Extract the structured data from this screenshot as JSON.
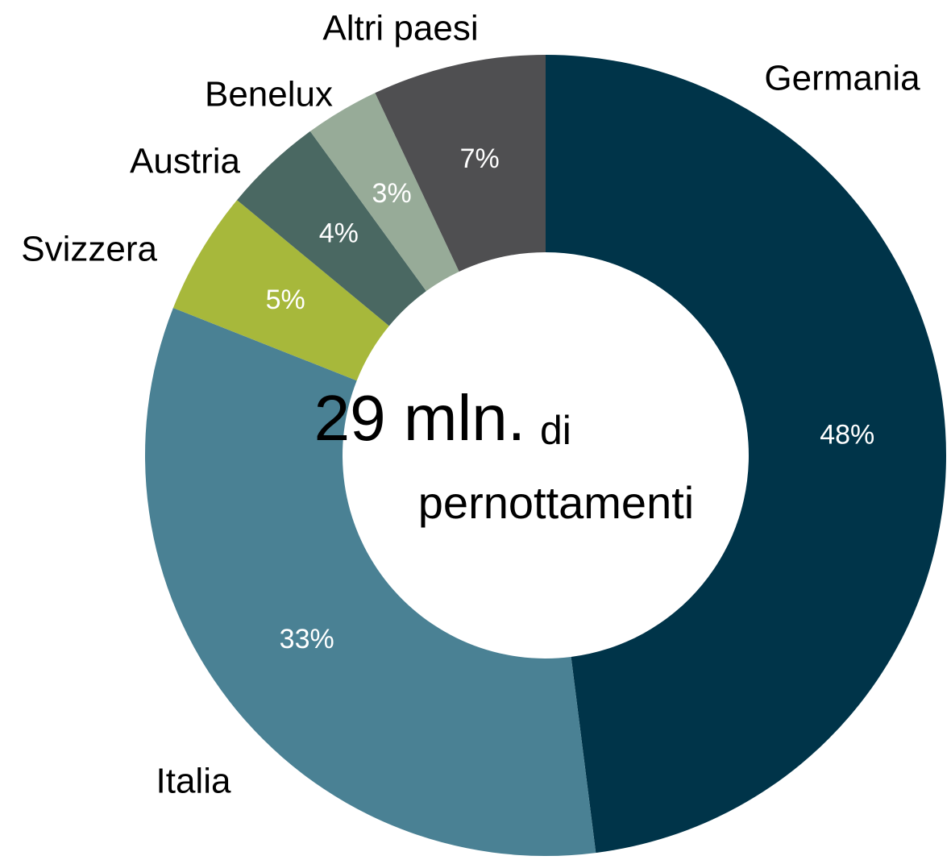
{
  "chart_data": {
    "type": "donut",
    "categories": [
      "Germania",
      "Italia",
      "Svizzera",
      "Austria",
      "Benelux",
      "Altri paesi"
    ],
    "values": [
      48,
      33,
      5,
      4,
      3,
      7
    ],
    "value_labels": [
      "48%",
      "33%",
      "5%",
      "4%",
      "3%",
      "7%"
    ],
    "colors": [
      "#003449",
      "#4a8194",
      "#a7b83b",
      "#4a6862",
      "#97ab98",
      "#4f4f51"
    ],
    "annotations": [
      "29 mln.",
      "di",
      "pernottamenti"
    ]
  }
}
